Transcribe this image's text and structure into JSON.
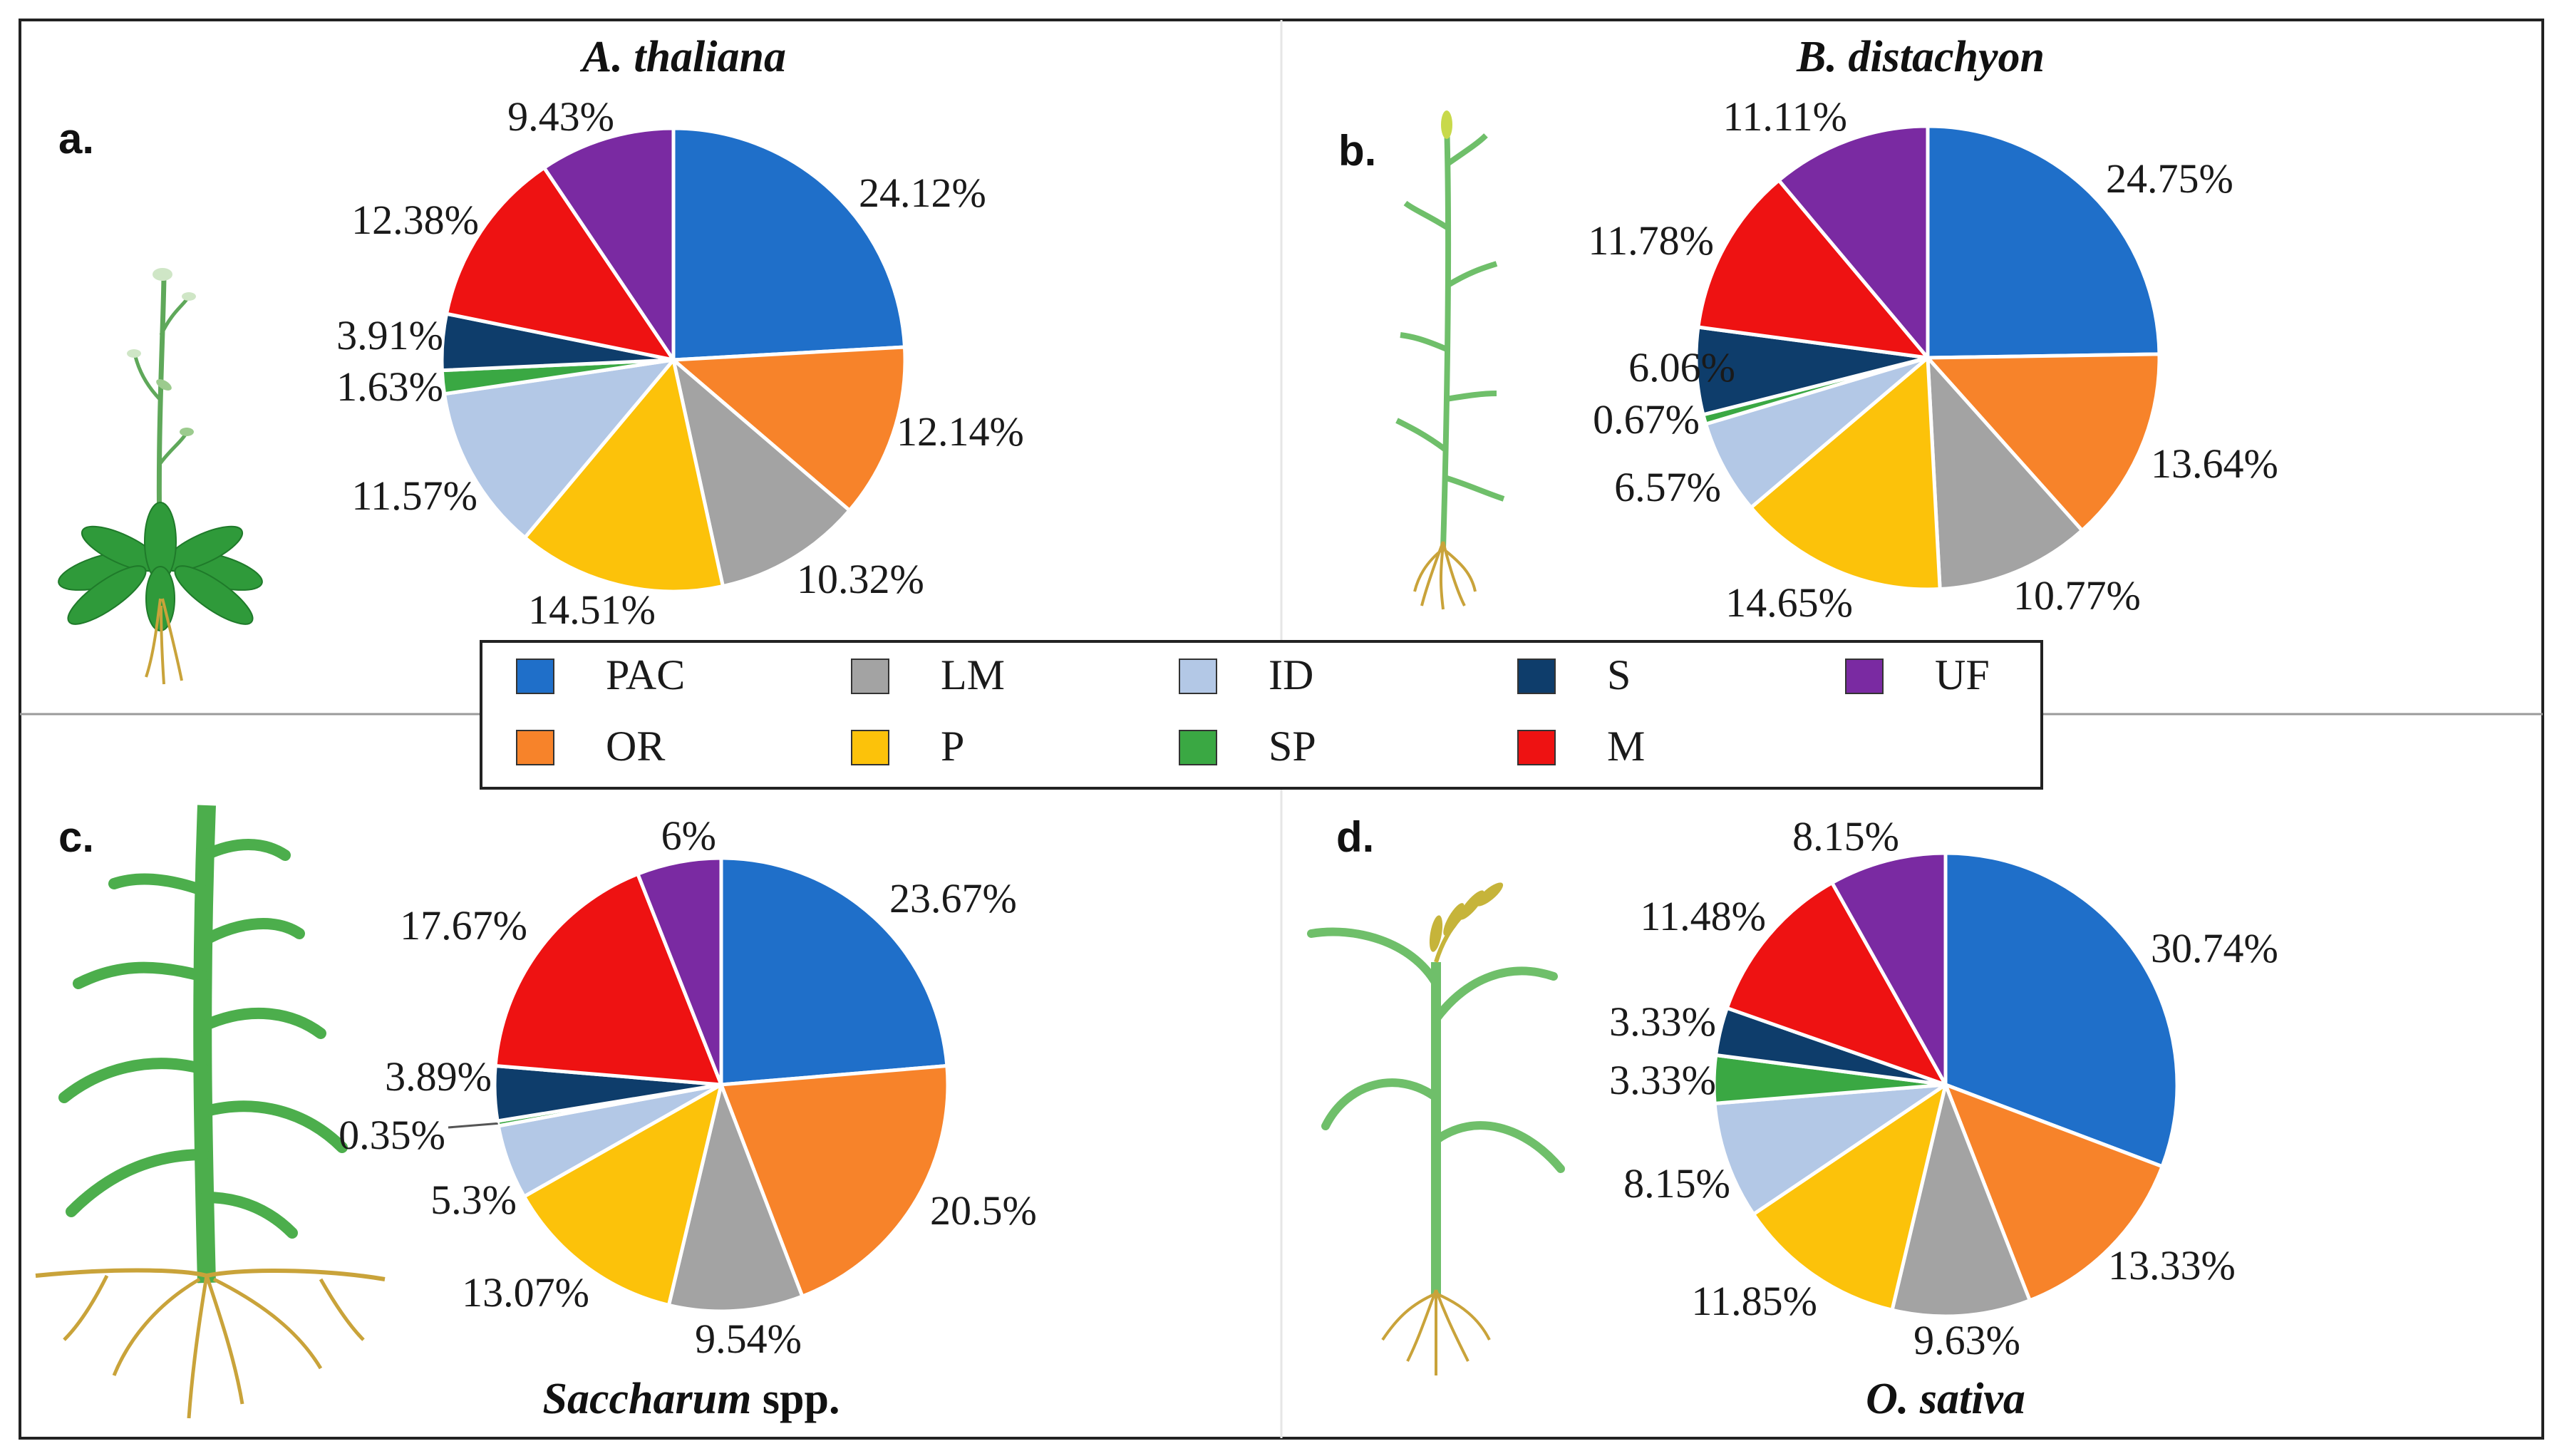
{
  "legend": {
    "items": [
      {
        "label": "PAC",
        "color": "#1f6fc9"
      },
      {
        "label": "OR",
        "color": "#f7832a"
      },
      {
        "label": "LM",
        "color": "#a3a3a3"
      },
      {
        "label": "P",
        "color": "#fcc20a"
      },
      {
        "label": "ID",
        "color": "#b3c8e6"
      },
      {
        "label": "SP",
        "color": "#3aa843"
      },
      {
        "label": "S",
        "color": "#0e3d6b"
      },
      {
        "label": "M",
        "color": "#ee1212"
      },
      {
        "label": "UF",
        "color": "#7a2aa2"
      }
    ]
  },
  "chart_data": [
    {
      "type": "pie",
      "panel": "a.",
      "title_italic": "A. thaliana",
      "title_suffix": "",
      "plant_icon": "arabidopsis-plant",
      "slices": [
        {
          "category": "PAC",
          "value": 24.12,
          "label": "24.12%"
        },
        {
          "category": "OR",
          "value": 12.14,
          "label": "12.14%"
        },
        {
          "category": "LM",
          "value": 10.32,
          "label": "10.32%"
        },
        {
          "category": "P",
          "value": 14.51,
          "label": "14.51%"
        },
        {
          "category": "ID",
          "value": 11.57,
          "label": "11.57%"
        },
        {
          "category": "SP",
          "value": 1.63,
          "label": "1.63%"
        },
        {
          "category": "S",
          "value": 3.91,
          "label": "3.91%"
        },
        {
          "category": "M",
          "value": 12.38,
          "label": "12.38%"
        },
        {
          "category": "UF",
          "value": 9.43,
          "label": "9.43%"
        }
      ]
    },
    {
      "type": "pie",
      "panel": "b.",
      "title_italic": "B. distachyon",
      "title_suffix": "",
      "plant_icon": "grass-plant",
      "slices": [
        {
          "category": "PAC",
          "value": 24.75,
          "label": "24.75%"
        },
        {
          "category": "OR",
          "value": 13.64,
          "label": "13.64%"
        },
        {
          "category": "LM",
          "value": 10.77,
          "label": "10.77%"
        },
        {
          "category": "P",
          "value": 14.65,
          "label": "14.65%"
        },
        {
          "category": "ID",
          "value": 6.57,
          "label": "6.57%"
        },
        {
          "category": "SP",
          "value": 0.67,
          "label": "0.67%"
        },
        {
          "category": "S",
          "value": 6.06,
          "label": "6.06%"
        },
        {
          "category": "M",
          "value": 11.78,
          "label": "11.78%"
        },
        {
          "category": "UF",
          "value": 11.11,
          "label": "11.11%"
        }
      ]
    },
    {
      "type": "pie",
      "panel": "c.",
      "title_italic": "Saccharum",
      "title_suffix": " spp.",
      "plant_icon": "sugarcane-plant",
      "slices": [
        {
          "category": "PAC",
          "value": 23.67,
          "label": "23.67%"
        },
        {
          "category": "OR",
          "value": 20.5,
          "label": "20.5%"
        },
        {
          "category": "LM",
          "value": 9.54,
          "label": "9.54%"
        },
        {
          "category": "P",
          "value": 13.07,
          "label": "13.07%"
        },
        {
          "category": "ID",
          "value": 5.3,
          "label": "5.3%"
        },
        {
          "category": "SP",
          "value": 0.35,
          "label": "0.35%"
        },
        {
          "category": "S",
          "value": 3.89,
          "label": "3.89%"
        },
        {
          "category": "M",
          "value": 17.67,
          "label": "17.67%"
        },
        {
          "category": "UF",
          "value": 6,
          "label": "6%"
        }
      ]
    },
    {
      "type": "pie",
      "panel": "d.",
      "title_italic": "O. sativa",
      "title_suffix": "",
      "plant_icon": "rice-plant",
      "slices": [
        {
          "category": "PAC",
          "value": 30.74,
          "label": "30.74%"
        },
        {
          "category": "OR",
          "value": 13.33,
          "label": "13.33%"
        },
        {
          "category": "LM",
          "value": 9.63,
          "label": "9.63%"
        },
        {
          "category": "P",
          "value": 11.85,
          "label": "11.85%"
        },
        {
          "category": "ID",
          "value": 8.15,
          "label": "8.15%"
        },
        {
          "category": "SP",
          "value": 3.33,
          "label": "3.33%"
        },
        {
          "category": "S",
          "value": 3.33,
          "label": "3.33%"
        },
        {
          "category": "M",
          "value": 11.48,
          "label": "11.48%"
        },
        {
          "category": "UF",
          "value": 8.15,
          "label": "8.15%"
        }
      ]
    }
  ]
}
